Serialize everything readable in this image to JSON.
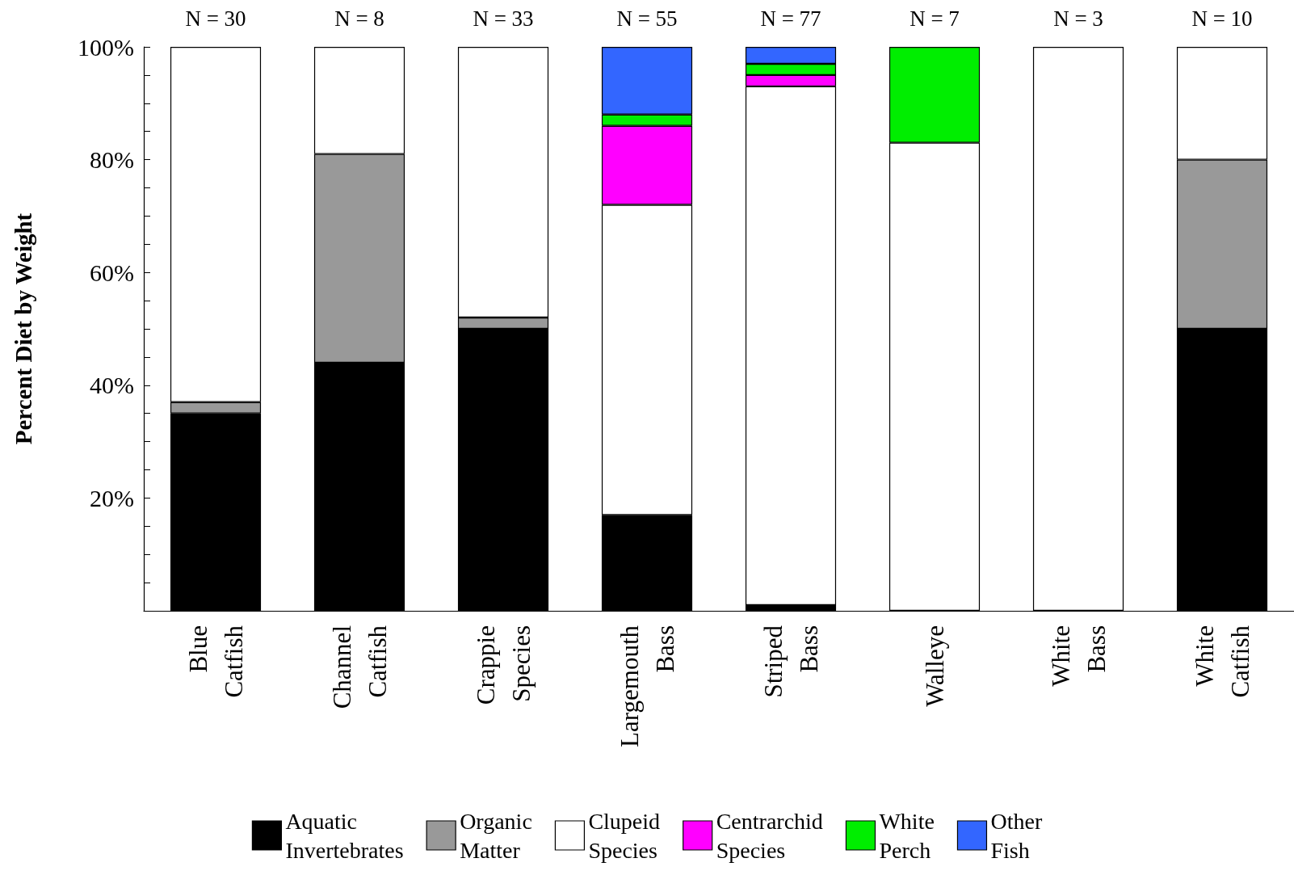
{
  "chart_data": {
    "type": "bar",
    "stacked": true,
    "ylabel": "Percent Diet by Weight",
    "categories": [
      "Blue Catfish",
      "Channel Catfish",
      "Crappie Species",
      "Largemouth Bass",
      "Striped Bass",
      "Walleye",
      "White Bass",
      "White Catfish"
    ],
    "series": [
      {
        "name": "Aquatic Invertebrates",
        "color": "#000000",
        "values": [
          35,
          44,
          50,
          17,
          1,
          0,
          0,
          50
        ]
      },
      {
        "name": "Organic Matter",
        "color": "#999999",
        "values": [
          2,
          37,
          2,
          0,
          0,
          0,
          0,
          30
        ]
      },
      {
        "name": "Clupeid Species",
        "color": "#ffffff",
        "values": [
          63,
          19,
          48,
          55,
          92,
          83,
          100,
          20
        ]
      },
      {
        "name": "Centrarchid Species",
        "color": "#ff00ff",
        "values": [
          0,
          0,
          0,
          14,
          2,
          0,
          0,
          0
        ]
      },
      {
        "name": "White Perch",
        "color": "#00ee00",
        "values": [
          0,
          0,
          0,
          2,
          2,
          17,
          0,
          0
        ]
      },
      {
        "name": "Other Fish",
        "color": "#3366ff",
        "values": [
          0,
          0,
          0,
          12,
          3,
          0,
          0,
          0
        ]
      }
    ],
    "ylim": [
      0,
      100
    ],
    "yticks": [
      {
        "value": 0,
        "label": null
      },
      {
        "value": 5,
        "label": null
      },
      {
        "value": 10,
        "label": null
      },
      {
        "value": 15,
        "label": null
      },
      {
        "value": 20,
        "label": "20%"
      },
      {
        "value": 25,
        "label": null
      },
      {
        "value": 30,
        "label": null
      },
      {
        "value": 35,
        "label": null
      },
      {
        "value": 40,
        "label": "40%"
      },
      {
        "value": 45,
        "label": null
      },
      {
        "value": 50,
        "label": null
      },
      {
        "value": 55,
        "label": null
      },
      {
        "value": 60,
        "label": "60%"
      },
      {
        "value": 65,
        "label": null
      },
      {
        "value": 70,
        "label": null
      },
      {
        "value": 75,
        "label": null
      },
      {
        "value": 80,
        "label": "80%"
      },
      {
        "value": 85,
        "label": null
      },
      {
        "value": 90,
        "label": null
      },
      {
        "value": 95,
        "label": null
      },
      {
        "value": 100,
        "label": "100%"
      }
    ],
    "grid": false,
    "legend": "bottom",
    "annotations": [
      {
        "text": "N = 30",
        "x": "Blue Catfish",
        "y": 100
      },
      {
        "text": "N = 8",
        "x": "Channel Catfish",
        "y": 100
      },
      {
        "text": "N = 33",
        "x": "Crappie Species",
        "y": 100
      },
      {
        "text": "N = 55",
        "x": "Largemouth Bass",
        "y": 100
      },
      {
        "text": "N = 77",
        "x": "Striped Bass",
        "y": 100
      },
      {
        "text": "N = 7",
        "x": "Walleye",
        "y": 100
      },
      {
        "text": "N = 3",
        "x": "White Bass",
        "y": 100
      },
      {
        "text": "N = 10",
        "x": "White Catfish",
        "y": 100
      }
    ]
  }
}
